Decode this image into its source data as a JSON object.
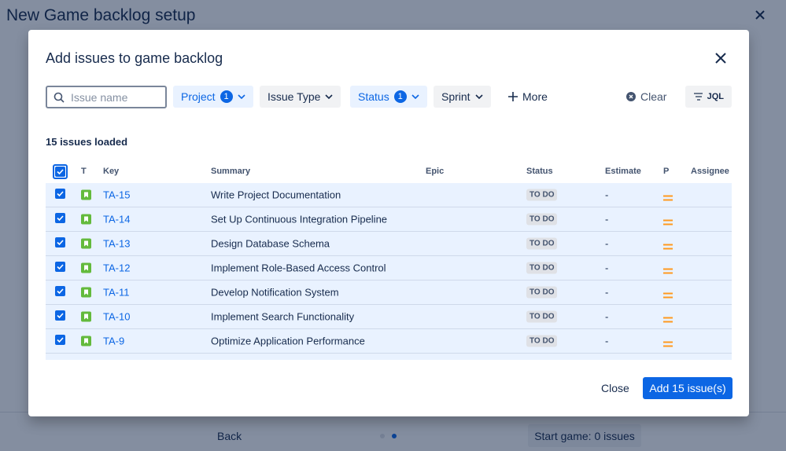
{
  "header": {
    "title": "New Game backlog setup"
  },
  "modal": {
    "title": "Add issues to game backlog",
    "filters": {
      "search_placeholder": "Issue name",
      "project": "Project",
      "project_count": 1,
      "issue_type": "Issue Type",
      "status": "Status",
      "status_count": 1,
      "sprint": "Sprint",
      "more": "More",
      "clear": "Clear",
      "jql": "JQL"
    },
    "count_text": "15 issues loaded",
    "columns": [
      "T",
      "Key",
      "Summary",
      "Epic",
      "Status",
      "Estimate",
      "P",
      "Assignee"
    ],
    "rows": [
      {
        "key": "TA-15",
        "summary": "Write Project Documentation",
        "status": "TO DO",
        "estimate": "-"
      },
      {
        "key": "TA-14",
        "summary": "Set Up Continuous Integration Pipeline",
        "status": "TO DO",
        "estimate": "-"
      },
      {
        "key": "TA-13",
        "summary": "Design Database Schema",
        "status": "TO DO",
        "estimate": "-"
      },
      {
        "key": "TA-12",
        "summary": "Implement Role-Based Access Control",
        "status": "TO DO",
        "estimate": "-"
      },
      {
        "key": "TA-11",
        "summary": "Develop Notification System",
        "status": "TO DO",
        "estimate": "-"
      },
      {
        "key": "TA-10",
        "summary": "Implement Search Functionality",
        "status": "TO DO",
        "estimate": "-"
      },
      {
        "key": "TA-9",
        "summary": "Optimize Application Performance",
        "status": "TO DO",
        "estimate": "-"
      }
    ],
    "close": "Close",
    "add": "Add 15 issue(s)"
  },
  "footer": {
    "back": "Back",
    "start": "Start game: 0 issues"
  }
}
